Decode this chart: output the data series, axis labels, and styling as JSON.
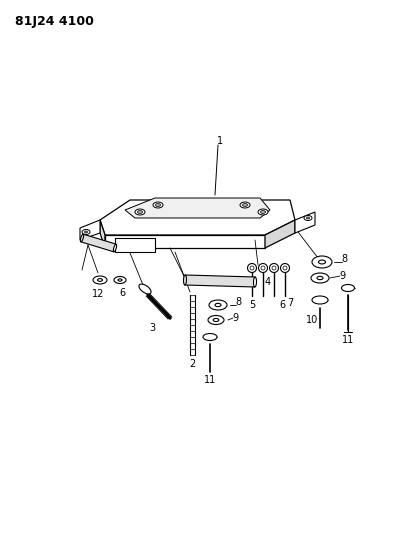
{
  "title_text": "81J24 4100",
  "bg_color": "#ffffff",
  "figsize": [
    3.99,
    5.33
  ],
  "dpi": 100
}
